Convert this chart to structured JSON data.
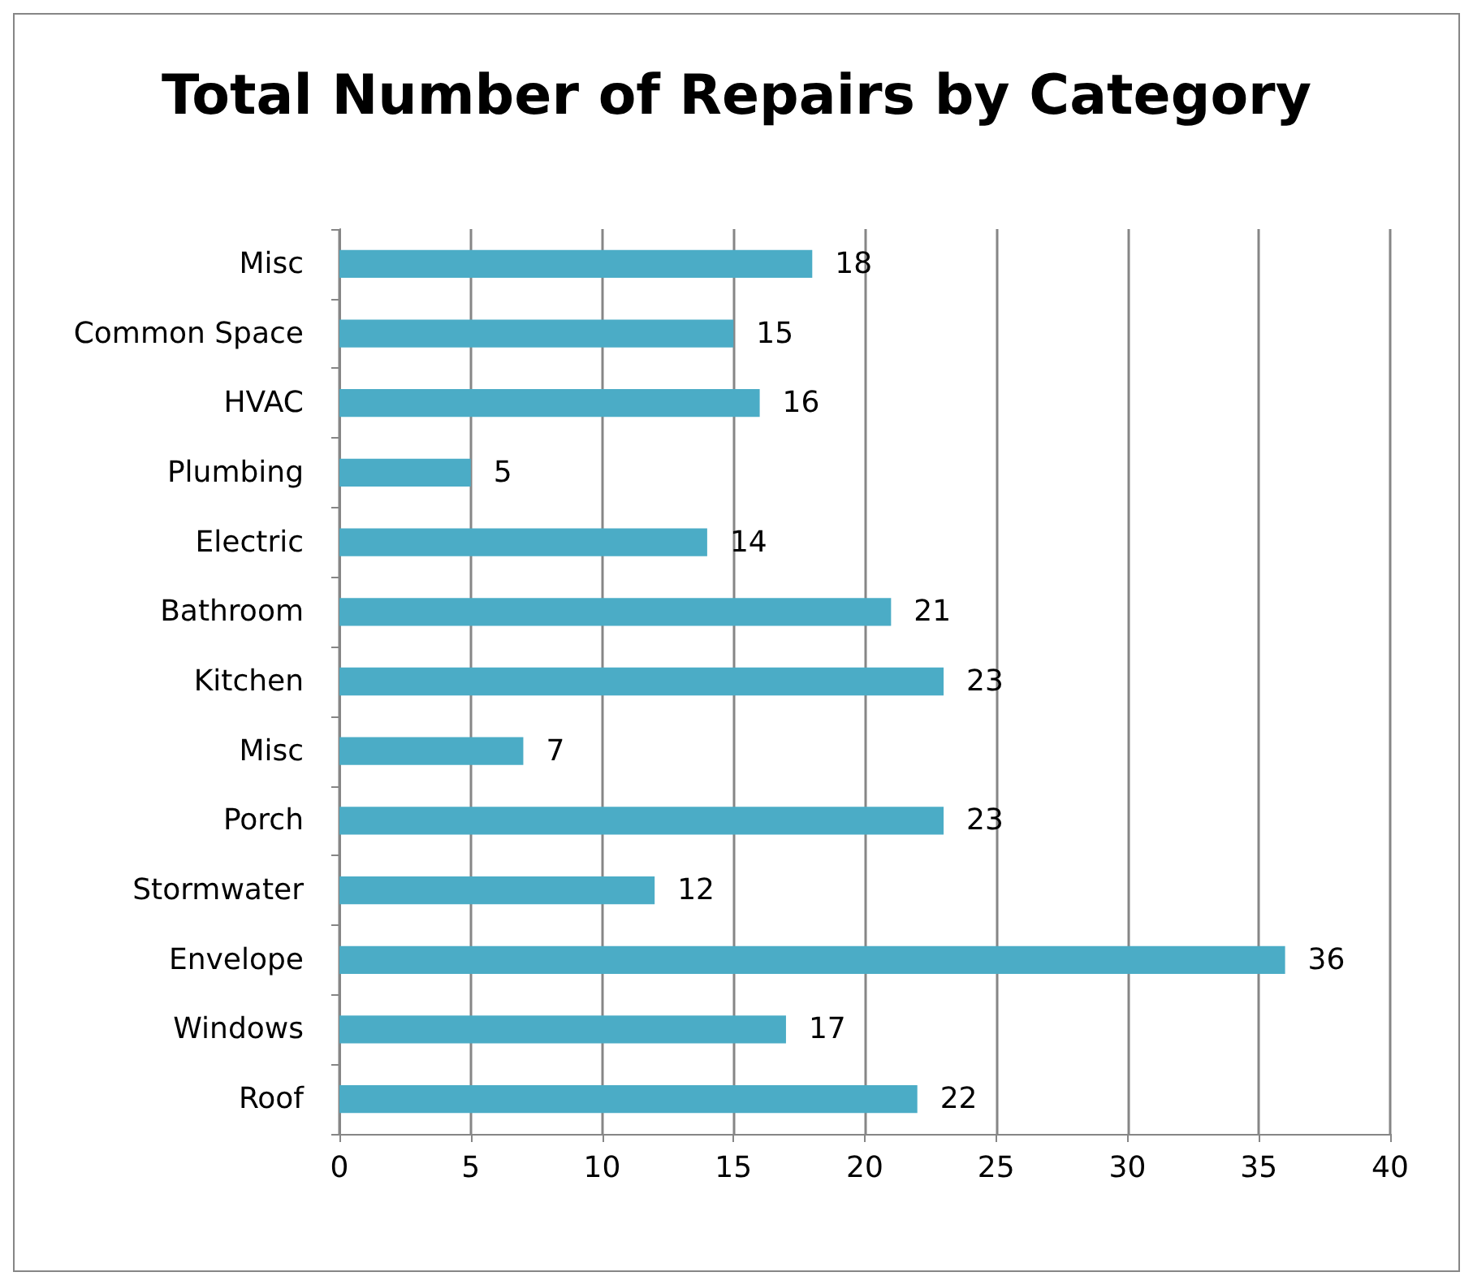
{
  "chart_data": {
    "type": "bar",
    "orientation": "horizontal",
    "title": "Total Number of Repairs by Category",
    "categories": [
      "Misc",
      "Common Space",
      "HVAC",
      "Plumbing",
      "Electric",
      "Bathroom",
      "Kitchen",
      "Misc",
      "Porch",
      "Stormwater",
      "Envelope",
      "Windows",
      "Roof"
    ],
    "values": [
      18,
      15,
      16,
      5,
      14,
      21,
      23,
      7,
      23,
      12,
      36,
      17,
      22
    ],
    "color": "#4bacc6",
    "xlim": [
      0,
      40
    ],
    "xticks": [
      0,
      5,
      10,
      15,
      20,
      25,
      30,
      35,
      40
    ],
    "grid": "x",
    "data_labels": true
  }
}
